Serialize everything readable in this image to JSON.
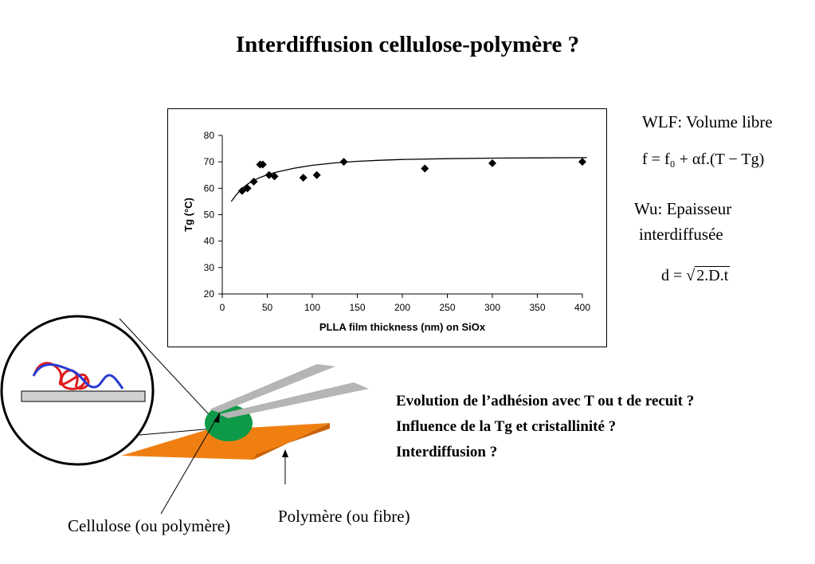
{
  "slide": {
    "title": "Interdiffusion cellulose-polymère ?"
  },
  "notes": {
    "wlf_label": "WLF: Volume libre",
    "wlf_formula": "f = f₀ + αf.(T − Tg)",
    "wu_label_line1": "Wu: Epaisseur",
    "wu_label_line2": "interdiffusée",
    "wu_formula_lhs": "d = ",
    "wu_formula_rhs": "2.D.t"
  },
  "questions": [
    "Evolution de l’adhésion avec T ou t de recuit ?",
    "Influence de la Tg et cristallinité ?",
    "Interdiffusion ?"
  ],
  "diagram": {
    "label_cellulose": "Cellulose (ou polymère)",
    "label_polymer": "Polymère (ou fibre)",
    "colors": {
      "substrate": "#f07f12",
      "droplet": "#0e9a48",
      "tweezers": "#b5b5b5",
      "chain_red": "#e01c1c",
      "chain_blue": "#2a3bd1",
      "surface": "#d0d0d0"
    }
  },
  "chart_data": {
    "type": "scatter",
    "title": "",
    "xlabel": "PLLA film thickness (nm) on SiOx",
    "ylabel": "Tg (°C)",
    "xlim": [
      0,
      400
    ],
    "ylim": [
      20,
      80
    ],
    "xticks": [
      0,
      50,
      100,
      150,
      200,
      250,
      300,
      350,
      400
    ],
    "yticks": [
      20,
      30,
      40,
      50,
      60,
      70,
      80
    ],
    "marker": "diamond",
    "grid": false,
    "legend": "none",
    "series": [
      {
        "points": [
          {
            "x": 22,
            "y": 59
          },
          {
            "x": 28,
            "y": 60
          },
          {
            "x": 35,
            "y": 62.5
          },
          {
            "x": 42,
            "y": 69
          },
          {
            "x": 45,
            "y": 69
          },
          {
            "x": 52,
            "y": 65
          },
          {
            "x": 58,
            "y": 64.5
          },
          {
            "x": 90,
            "y": 64
          },
          {
            "x": 105,
            "y": 65
          },
          {
            "x": 135,
            "y": 70
          },
          {
            "x": 225,
            "y": 67.5
          },
          {
            "x": 300,
            "y": 69.5
          },
          {
            "x": 400,
            "y": 70
          }
        ]
      }
    ],
    "fit_curve": {
      "x": [
        10,
        15,
        20,
        25,
        30,
        40,
        50,
        60,
        80,
        100,
        125,
        150,
        175,
        200,
        250,
        300,
        350,
        405
      ],
      "y": [
        55,
        57.3,
        59.3,
        60.8,
        62,
        63.8,
        65.1,
        66.1,
        67.6,
        68.7,
        69.6,
        70.2,
        70.6,
        70.9,
        71.2,
        71.4,
        71.5,
        71.6
      ]
    }
  }
}
